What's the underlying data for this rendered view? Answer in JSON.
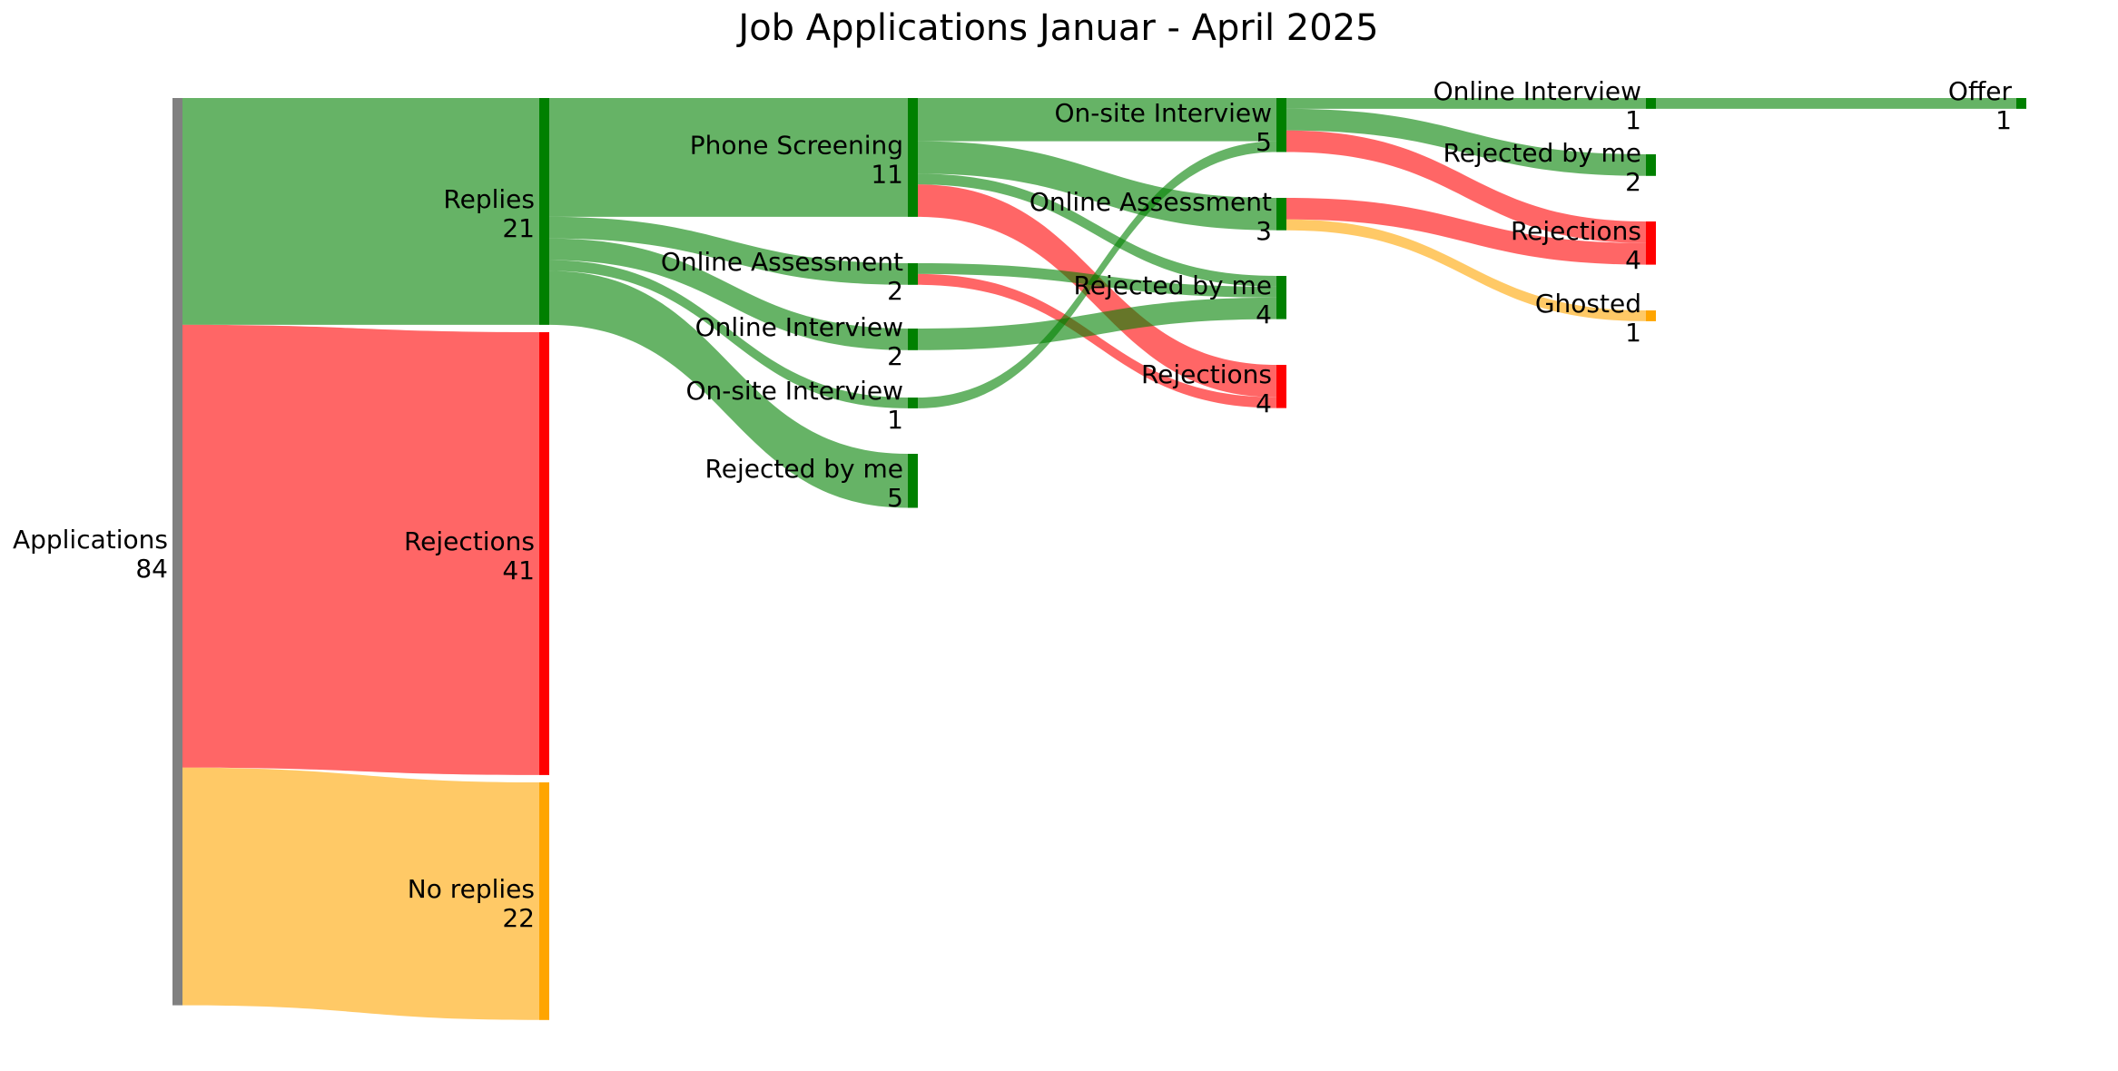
{
  "chart_data": {
    "type": "sankey",
    "title": "Job Applications Januar - April 2025",
    "colors": {
      "neutral": "#808080",
      "positive": "#008000",
      "negative": "#ff0000",
      "pending": "#ffa500"
    },
    "nodes": [
      {
        "id": "applications",
        "label": "Applications",
        "value": "84",
        "stage": 0,
        "color": "#808080"
      },
      {
        "id": "replies",
        "label": "Replies",
        "value": "21",
        "stage": 1,
        "color": "#008000"
      },
      {
        "id": "rejections_1",
        "label": "Rejections",
        "value": "41",
        "stage": 1,
        "color": "#ff0000"
      },
      {
        "id": "no_replies",
        "label": "No replies",
        "value": "22",
        "stage": 1,
        "color": "#ffa500"
      },
      {
        "id": "phone_screening",
        "label": "Phone Screening",
        "value": "11",
        "stage": 2,
        "color": "#008000"
      },
      {
        "id": "online_assessment_2",
        "label": "Online Assessment",
        "value": "2",
        "stage": 2,
        "color": "#008000"
      },
      {
        "id": "online_interview_2",
        "label": "Online Interview",
        "value": "2",
        "stage": 2,
        "color": "#008000"
      },
      {
        "id": "onsite_interview_2",
        "label": "On-site Interview",
        "value": "1",
        "stage": 2,
        "color": "#008000"
      },
      {
        "id": "rejected_by_me_2",
        "label": "Rejected by me",
        "value": "5",
        "stage": 2,
        "color": "#008000"
      },
      {
        "id": "onsite_interview_3",
        "label": "On-site Interview",
        "value": "5",
        "stage": 3,
        "color": "#008000"
      },
      {
        "id": "online_assessment_3",
        "label": "Online Assessment",
        "value": "3",
        "stage": 3,
        "color": "#008000"
      },
      {
        "id": "rejected_by_me_3",
        "label": "Rejected by me",
        "value": "4",
        "stage": 3,
        "color": "#008000"
      },
      {
        "id": "rejections_3",
        "label": "Rejections",
        "value": "4",
        "stage": 3,
        "color": "#ff0000"
      },
      {
        "id": "online_interview_4",
        "label": "Online Interview",
        "value": "1",
        "stage": 4,
        "color": "#008000"
      },
      {
        "id": "rejected_by_me_4",
        "label": "Rejected by me",
        "value": "2",
        "stage": 4,
        "color": "#008000"
      },
      {
        "id": "rejections_4",
        "label": "Rejections",
        "value": "4",
        "stage": 4,
        "color": "#ff0000"
      },
      {
        "id": "ghosted_4",
        "label": "Ghosted",
        "value": "1",
        "stage": 4,
        "color": "#ffa500"
      },
      {
        "id": "offer_5",
        "label": "Offer",
        "value": "1",
        "stage": 5,
        "color": "#008000"
      }
    ],
    "links": [
      {
        "source": "applications",
        "target": "replies",
        "value": 21,
        "color": "#008000"
      },
      {
        "source": "applications",
        "target": "rejections_1",
        "value": 41,
        "color": "#ff0000"
      },
      {
        "source": "applications",
        "target": "no_replies",
        "value": 22,
        "color": "#ffa500"
      },
      {
        "source": "replies",
        "target": "phone_screening",
        "value": 11,
        "color": "#008000"
      },
      {
        "source": "replies",
        "target": "online_assessment_2",
        "value": 2,
        "color": "#008000"
      },
      {
        "source": "replies",
        "target": "online_interview_2",
        "value": 2,
        "color": "#008000"
      },
      {
        "source": "replies",
        "target": "onsite_interview_2",
        "value": 1,
        "color": "#008000"
      },
      {
        "source": "replies",
        "target": "rejected_by_me_2",
        "value": 5,
        "color": "#008000"
      },
      {
        "source": "phone_screening",
        "target": "onsite_interview_3",
        "value": 4,
        "color": "#008000"
      },
      {
        "source": "phone_screening",
        "target": "online_assessment_3",
        "value": 3,
        "color": "#008000"
      },
      {
        "source": "phone_screening",
        "target": "rejected_by_me_3",
        "value": 1,
        "color": "#008000"
      },
      {
        "source": "phone_screening",
        "target": "rejections_3",
        "value": 3,
        "color": "#ff0000"
      },
      {
        "source": "online_assessment_2",
        "target": "rejected_by_me_3",
        "value": 1,
        "color": "#008000"
      },
      {
        "source": "online_assessment_2",
        "target": "rejections_3",
        "value": 1,
        "color": "#ff0000"
      },
      {
        "source": "online_interview_2",
        "target": "rejected_by_me_3",
        "value": 2,
        "color": "#008000"
      },
      {
        "source": "onsite_interview_2",
        "target": "onsite_interview_3",
        "value": 1,
        "color": "#008000"
      },
      {
        "source": "onsite_interview_3",
        "target": "online_interview_4",
        "value": 1,
        "color": "#008000"
      },
      {
        "source": "onsite_interview_3",
        "target": "rejected_by_me_4",
        "value": 2,
        "color": "#008000"
      },
      {
        "source": "onsite_interview_3",
        "target": "rejections_4",
        "value": 2,
        "color": "#ff0000"
      },
      {
        "source": "online_assessment_3",
        "target": "rejections_4",
        "value": 2,
        "color": "#ff0000"
      },
      {
        "source": "online_assessment_3",
        "target": "ghosted_4",
        "value": 1,
        "color": "#ffa500"
      },
      {
        "source": "online_interview_4",
        "target": "offer_5",
        "value": 1,
        "color": "#008000"
      }
    ]
  }
}
